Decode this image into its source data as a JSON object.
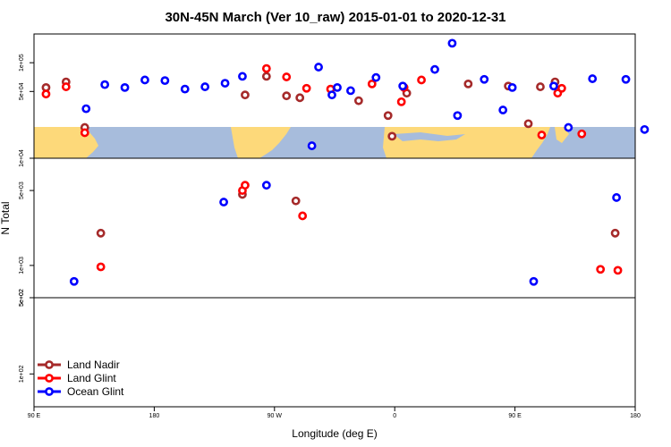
{
  "chart_data": {
    "type": "scatter",
    "title": "30N-45N March (Ver 10_raw)   2015-01-01 to 2020-12-31",
    "xlabel": "Longitude (deg E)",
    "ylabel": "N Total",
    "xlim": [
      90,
      540
    ],
    "x_ticks": [
      {
        "value": 90,
        "label": "90 E"
      },
      {
        "value": 180,
        "label": "180"
      },
      {
        "value": 270,
        "label": "90 W"
      },
      {
        "value": 360,
        "label": "0"
      },
      {
        "value": 450,
        "label": "90 E"
      },
      {
        "value": 540,
        "label": "180"
      }
    ],
    "y_scale": "log",
    "panels": [
      {
        "ylim": [
          10000,
          200000
        ],
        "ticks": [
          {
            "value": 100000,
            "label": "1e+05"
          },
          {
            "value": 50000,
            "label": "5e+04"
          },
          {
            "value": 10000,
            "label": "1e+04"
          }
        ]
      },
      {
        "ylim": [
          500,
          10000
        ],
        "ticks": [
          {
            "value": 5000,
            "label": "5e+03"
          },
          {
            "value": 1000,
            "label": "1e+03"
          },
          {
            "value": 500,
            "label": "5e+02"
          }
        ]
      },
      {
        "ylim": [
          50,
          500
        ],
        "ticks": [
          {
            "value": 500,
            "label": "5e+02"
          },
          {
            "value": 100,
            "label": "1e+02"
          }
        ]
      }
    ],
    "grid": false,
    "background_map": "world map strip, land in yellow, ocean in blue",
    "legend_position": "bottom-left",
    "colors": {
      "land_nadir": "#a52a2a",
      "land_glint": "#ff0000",
      "ocean_glint": "#0000ff",
      "land_map": "#fdd97a",
      "ocean_map": "#a7bcdc"
    },
    "series": [
      {
        "name": "Land Nadir",
        "color": "#a52a2a",
        "x": [
          99,
          114,
          128,
          140,
          246,
          248,
          264,
          279,
          286,
          289,
          333,
          355,
          358,
          369,
          415,
          445,
          460,
          469,
          480,
          525
        ],
        "y": [
          55000,
          63000,
          21000,
          2000,
          4600,
          46000,
          72000,
          45000,
          4000,
          43000,
          40000,
          28000,
          17000,
          48000,
          60000,
          57000,
          23000,
          56000,
          63000,
          2000
        ]
      },
      {
        "name": "Land Glint",
        "color": "#ff0000",
        "x": [
          99,
          114,
          128,
          140,
          246,
          248,
          264,
          279,
          291,
          294,
          312,
          343,
          365,
          367,
          380,
          470,
          482,
          485,
          500,
          514,
          527
        ],
        "y": [
          47000,
          56000,
          18500,
          970,
          5000,
          5600,
          87000,
          71000,
          2900,
          54000,
          53000,
          60000,
          39000,
          55000,
          66000,
          17500,
          48000,
          54000,
          18000,
          920,
          900
        ]
      },
      {
        "name": "Ocean Glint",
        "color": "#0000ff",
        "x": [
          120,
          129,
          143,
          158,
          173,
          188,
          203,
          218,
          232,
          233,
          246,
          264,
          298,
          303,
          313,
          317,
          327,
          346,
          366,
          390,
          403,
          407,
          427,
          441,
          448,
          464,
          479,
          490,
          508,
          526,
          533,
          547
        ],
        "y": [
          710,
          33000,
          59000,
          55000,
          66000,
          65000,
          53000,
          56000,
          3900,
          61000,
          72000,
          5600,
          13500,
          90000,
          46000,
          55000,
          51000,
          70000,
          57000,
          85000,
          160000,
          28000,
          67000,
          32000,
          55000,
          710,
          57000,
          21000,
          68000,
          4300,
          67000,
          20000
        ]
      }
    ]
  }
}
